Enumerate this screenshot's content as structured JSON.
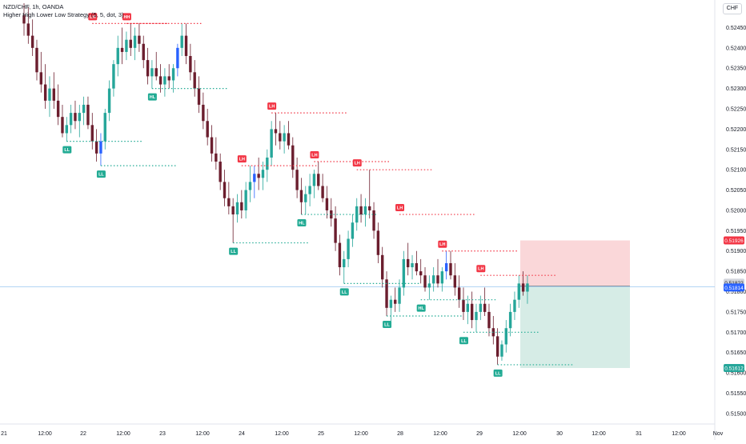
{
  "header": {
    "symbol_line": "NZD/CHF, 1h, OANDA",
    "indicator_line": "Higher High Lower Low Strategy (5, 5, dot, 3)"
  },
  "currency_badge": "CHF",
  "colors": {
    "up": "#26a69a",
    "down": "#6b1e2e",
    "accent_up": "#2962ff",
    "pivot_high": "#f23645",
    "pivot_low": "#22ab94",
    "stop_zone": "#f8c9cc",
    "target_zone": "#c8e6de"
  },
  "chart_data": {
    "type": "candlestick",
    "title": "NZD/CHF, 1h, OANDA",
    "ylim": [
      0.5148,
      0.5251
    ],
    "y_ticks": [
      "0.52450",
      "0.52400",
      "0.52350",
      "0.52300",
      "0.52250",
      "0.52200",
      "0.52150",
      "0.52100",
      "0.52050",
      "0.52000",
      "0.51950",
      "0.51900",
      "0.51850",
      "0.51800",
      "0.51750",
      "0.51700",
      "0.51650",
      "0.51600",
      "0.51550",
      "0.51500"
    ],
    "x_ticks": [
      "21",
      "12:00",
      "22",
      "12:00",
      "23",
      "12:00",
      "24",
      "12:00",
      "25",
      "12:00",
      "28",
      "12:00",
      "29",
      "12:00",
      "30",
      "12:00",
      "31",
      "12:00",
      "Nov"
    ],
    "candles": [
      [
        0.5248,
        0.5251,
        0.5243,
        0.5246
      ],
      [
        0.5246,
        0.525,
        0.5241,
        0.5243
      ],
      [
        0.5243,
        0.5247,
        0.5238,
        0.524
      ],
      [
        0.524,
        0.5242,
        0.5232,
        0.5234
      ],
      [
        0.5234,
        0.5239,
        0.5229,
        0.5231
      ],
      [
        0.5231,
        0.5236,
        0.5225,
        0.5227
      ],
      [
        0.5227,
        0.5233,
        0.5223,
        0.523
      ],
      [
        0.523,
        0.5234,
        0.5225,
        0.5227
      ],
      [
        0.5227,
        0.5231,
        0.5221,
        0.5223
      ],
      [
        0.5223,
        0.5226,
        0.5218,
        0.5219
      ],
      [
        0.5219,
        0.5223,
        0.5217,
        0.5221
      ],
      [
        0.5221,
        0.5226,
        0.5219,
        0.5224
      ],
      [
        0.5224,
        0.5227,
        0.522,
        0.5222
      ],
      [
        0.5222,
        0.5226,
        0.5218,
        0.5224
      ],
      [
        0.5224,
        0.5228,
        0.5221,
        0.5226
      ],
      [
        0.5226,
        0.5228,
        0.522,
        0.5221
      ],
      [
        0.5221,
        0.5224,
        0.5215,
        0.5217
      ],
      [
        0.5217,
        0.522,
        0.5212,
        0.5214
      ],
      [
        0.5214,
        0.5219,
        0.5211,
        0.5217
      ],
      [
        0.5217,
        0.5225,
        0.5215,
        0.5224
      ],
      [
        0.5224,
        0.5232,
        0.5222,
        0.523
      ],
      [
        0.523,
        0.5237,
        0.5228,
        0.5236
      ],
      [
        0.5236,
        0.5243,
        0.5233,
        0.524
      ],
      [
        0.524,
        0.5245,
        0.5236,
        0.5239
      ],
      [
        0.5239,
        0.5244,
        0.5237,
        0.5242
      ],
      [
        0.5242,
        0.5246,
        0.5238,
        0.524
      ],
      [
        0.524,
        0.5245,
        0.5237,
        0.5243
      ],
      [
        0.5243,
        0.5246,
        0.5239,
        0.5241
      ],
      [
        0.5241,
        0.5243,
        0.5235,
        0.5237
      ],
      [
        0.5237,
        0.524,
        0.5231,
        0.5233
      ],
      [
        0.5233,
        0.5237,
        0.523,
        0.5235
      ],
      [
        0.5235,
        0.5239,
        0.5232,
        0.5233
      ],
      [
        0.5233,
        0.5236,
        0.5229,
        0.5231
      ],
      [
        0.5231,
        0.5235,
        0.5228,
        0.5233
      ],
      [
        0.5233,
        0.5236,
        0.523,
        0.5232
      ],
      [
        0.5232,
        0.5236,
        0.5229,
        0.5235
      ],
      [
        0.5235,
        0.5241,
        0.5233,
        0.524
      ],
      [
        0.524,
        0.5246,
        0.5238,
        0.5243
      ],
      [
        0.5243,
        0.5246,
        0.5236,
        0.5238
      ],
      [
        0.5238,
        0.5241,
        0.5232,
        0.5234
      ],
      [
        0.5234,
        0.5237,
        0.5228,
        0.523
      ],
      [
        0.523,
        0.5233,
        0.5224,
        0.5226
      ],
      [
        0.5226,
        0.5229,
        0.522,
        0.5222
      ],
      [
        0.5222,
        0.5225,
        0.5216,
        0.5218
      ],
      [
        0.5218,
        0.5221,
        0.5212,
        0.5214
      ],
      [
        0.5214,
        0.5218,
        0.521,
        0.5212
      ],
      [
        0.5212,
        0.5214,
        0.5205,
        0.5207
      ],
      [
        0.5207,
        0.521,
        0.5201,
        0.5203
      ],
      [
        0.5203,
        0.5207,
        0.5199,
        0.5201
      ],
      [
        0.5201,
        0.5203,
        0.5192,
        0.5199
      ],
      [
        0.5199,
        0.5204,
        0.5197,
        0.5202
      ],
      [
        0.5202,
        0.5205,
        0.5198,
        0.52
      ],
      [
        0.52,
        0.5207,
        0.5198,
        0.5205
      ],
      [
        0.5205,
        0.5211,
        0.5202,
        0.5207
      ],
      [
        0.5207,
        0.5211,
        0.5203,
        0.5209
      ],
      [
        0.5209,
        0.5213,
        0.5205,
        0.5208
      ],
      [
        0.5208,
        0.5212,
        0.5205,
        0.521
      ],
      [
        0.521,
        0.5215,
        0.5207,
        0.5213
      ],
      [
        0.5213,
        0.5222,
        0.5211,
        0.522
      ],
      [
        0.522,
        0.5224,
        0.5216,
        0.5219
      ],
      [
        0.5219,
        0.5222,
        0.5215,
        0.5217
      ],
      [
        0.5217,
        0.5221,
        0.5214,
        0.5219
      ],
      [
        0.5219,
        0.5222,
        0.5215,
        0.5216
      ],
      [
        0.5216,
        0.5218,
        0.5208,
        0.521
      ],
      [
        0.521,
        0.5213,
        0.5203,
        0.5205
      ],
      [
        0.5205,
        0.5208,
        0.5199,
        0.5202
      ],
      [
        0.5202,
        0.5206,
        0.5199,
        0.5204
      ],
      [
        0.5204,
        0.5209,
        0.5201,
        0.5206
      ],
      [
        0.5206,
        0.521,
        0.5203,
        0.5209
      ],
      [
        0.5209,
        0.5212,
        0.5205,
        0.5206
      ],
      [
        0.5206,
        0.5209,
        0.5202,
        0.5203
      ],
      [
        0.5203,
        0.5206,
        0.5198,
        0.52
      ],
      [
        0.52,
        0.5203,
        0.5196,
        0.5198
      ],
      [
        0.5198,
        0.5201,
        0.519,
        0.5192
      ],
      [
        0.5192,
        0.5194,
        0.5184,
        0.5186
      ],
      [
        0.5186,
        0.519,
        0.5182,
        0.5188
      ],
      [
        0.5188,
        0.5195,
        0.5186,
        0.5193
      ],
      [
        0.5193,
        0.5199,
        0.5191,
        0.5197
      ],
      [
        0.5197,
        0.5203,
        0.5195,
        0.5201
      ],
      [
        0.5201,
        0.5204,
        0.5197,
        0.5199
      ],
      [
        0.5199,
        0.5203,
        0.5196,
        0.5201
      ],
      [
        0.5201,
        0.521,
        0.5198,
        0.52
      ],
      [
        0.52,
        0.5202,
        0.5193,
        0.5195
      ],
      [
        0.5195,
        0.5197,
        0.5187,
        0.5189
      ],
      [
        0.5189,
        0.5191,
        0.5181,
        0.5183
      ],
      [
        0.5183,
        0.5185,
        0.5174,
        0.5176
      ],
      [
        0.5176,
        0.5179,
        0.5172,
        0.5178
      ],
      [
        0.5178,
        0.5181,
        0.5175,
        0.5177
      ],
      [
        0.5177,
        0.5183,
        0.5175,
        0.5181
      ],
      [
        0.5181,
        0.519,
        0.5179,
        0.5188
      ],
      [
        0.5188,
        0.5192,
        0.5184,
        0.5186
      ],
      [
        0.5186,
        0.5189,
        0.5183,
        0.5187
      ],
      [
        0.5187,
        0.519,
        0.5184,
        0.5185
      ],
      [
        0.5185,
        0.5188,
        0.5182,
        0.5184
      ],
      [
        0.5184,
        0.5186,
        0.518,
        0.5181
      ],
      [
        0.5181,
        0.5184,
        0.5178,
        0.5182
      ],
      [
        0.5182,
        0.5186,
        0.518,
        0.5184
      ],
      [
        0.5184,
        0.5188,
        0.5181,
        0.5182
      ],
      [
        0.5182,
        0.5186,
        0.518,
        0.5185
      ],
      [
        0.5185,
        0.519,
        0.5183,
        0.5187
      ],
      [
        0.5187,
        0.519,
        0.5183,
        0.5184
      ],
      [
        0.5184,
        0.5187,
        0.5179,
        0.5181
      ],
      [
        0.5181,
        0.5184,
        0.5176,
        0.5178
      ],
      [
        0.5178,
        0.5181,
        0.5173,
        0.5175
      ],
      [
        0.5175,
        0.5179,
        0.5172,
        0.5177
      ],
      [
        0.5177,
        0.518,
        0.5171,
        0.5173
      ],
      [
        0.5173,
        0.5177,
        0.517,
        0.5175
      ],
      [
        0.5175,
        0.5179,
        0.5173,
        0.5177
      ],
      [
        0.5177,
        0.5181,
        0.5174,
        0.5175
      ],
      [
        0.5175,
        0.5177,
        0.5169,
        0.5171
      ],
      [
        0.5171,
        0.5174,
        0.5167,
        0.5169
      ],
      [
        0.5169,
        0.5171,
        0.5162,
        0.5164
      ],
      [
        0.5164,
        0.5168,
        0.5163,
        0.5167
      ],
      [
        0.5167,
        0.5173,
        0.5165,
        0.5171
      ],
      [
        0.5171,
        0.5177,
        0.5169,
        0.5175
      ],
      [
        0.5175,
        0.518,
        0.5173,
        0.5178
      ],
      [
        0.5178,
        0.5184,
        0.5176,
        0.5182
      ],
      [
        0.5182,
        0.5185,
        0.5179,
        0.518
      ],
      [
        0.518,
        0.5184,
        0.5177,
        0.5182
      ]
    ],
    "pivots": [
      {
        "label": "HH",
        "type": "high",
        "index": 24,
        "price": 0.5246
      },
      {
        "label": "LH",
        "type": "high",
        "index": 16,
        "price": 0.5246
      },
      {
        "label": "HL",
        "type": "low",
        "index": 30,
        "price": 0.523
      },
      {
        "label": "LL",
        "type": "low",
        "index": 10,
        "price": 0.5217
      },
      {
        "label": "LL",
        "type": "low",
        "index": 18,
        "price": 0.5211
      },
      {
        "label": "LH",
        "type": "high",
        "index": 58,
        "price": 0.5224
      },
      {
        "label": "LH",
        "type": "high",
        "index": 51,
        "price": 0.5211
      },
      {
        "label": "LL",
        "type": "low",
        "index": 49,
        "price": 0.5192
      },
      {
        "label": "LH",
        "type": "high",
        "index": 68,
        "price": 0.5212
      },
      {
        "label": "HL",
        "type": "low",
        "index": 65,
        "price": 0.5199
      },
      {
        "label": "LH",
        "type": "high",
        "index": 78,
        "price": 0.521
      },
      {
        "label": "LH",
        "type": "high",
        "index": 88,
        "price": 0.5199
      },
      {
        "label": "LL",
        "type": "low",
        "index": 75,
        "price": 0.5182
      },
      {
        "label": "LL",
        "type": "low",
        "index": 85,
        "price": 0.5174
      },
      {
        "label": "HL",
        "type": "low",
        "index": 93,
        "price": 0.5178
      },
      {
        "label": "LH",
        "type": "high",
        "index": 98,
        "price": 0.519
      },
      {
        "label": "LH",
        "type": "high",
        "index": 107,
        "price": 0.5184
      },
      {
        "label": "LL",
        "type": "low",
        "index": 103,
        "price": 0.517
      },
      {
        "label": "LL",
        "type": "low",
        "index": 111,
        "price": 0.5162
      }
    ],
    "position": {
      "stop_price_label": "0.51926",
      "entry_price_label": "0.51814",
      "last_price_label": "0.51822",
      "target_price_label": "0.51612",
      "stop": 0.51926,
      "entry": 0.51814,
      "target": 0.51612
    }
  }
}
